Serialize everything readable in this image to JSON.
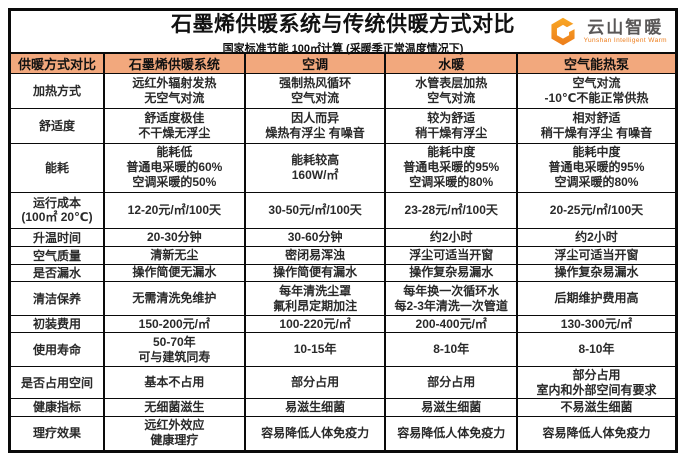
{
  "chart_data": {
    "type": "table",
    "title": "石墨烯供暖系统与传统供暖方式对比",
    "subtitle": "国家标准节能 100㎡计算 (采暖季正常温度情况下)",
    "columns": [
      "供暖方式对比",
      "石墨烯供暖系统",
      "空调",
      "水暖",
      "空气能热泵"
    ],
    "rows": [
      {
        "label": "加热方式",
        "cells": [
          "远红外辐射发热\n无空气对流",
          "强制热风循环\n空气对流",
          "水管表层加热\n空气对流",
          "空气对流\n-10℃不能正常供热"
        ]
      },
      {
        "label": "舒适度",
        "cells": [
          "舒适度极佳\n不干燥无浮尘",
          "因人而异\n燥热有浮尘 有噪音",
          "较为舒适\n稍干燥有浮尘",
          "相对舒适\n稍干燥有浮尘 有噪音"
        ]
      },
      {
        "label": "能耗",
        "cells": [
          "能耗低\n普通电采暖的60%\n空调采暖的50%",
          "能耗较高\n160W/㎡",
          "能耗中度\n普通电采暖的95%\n空调采暖的80%",
          "能耗中度\n普通电采暖的95%\n空调采暖的80%"
        ]
      },
      {
        "label": "运行成本\n(100㎡ 20℃)",
        "cells": [
          "12-20元/㎡/100天",
          "30-50元/㎡/100天",
          "23-28元/㎡/100天",
          "20-25元/㎡/100天"
        ]
      },
      {
        "label": "升温时间",
        "cells": [
          "20-30分钟",
          "30-60分钟",
          "约2小时",
          "约2小时"
        ]
      },
      {
        "label": "空气质量",
        "cells": [
          "清新无尘",
          "密闭易浑浊",
          "浮尘可适当开窗",
          "浮尘可适当开窗"
        ]
      },
      {
        "label": "是否漏水",
        "cells": [
          "操作简便无漏水",
          "操作简便有漏水",
          "操作复杂易漏水",
          "操作复杂易漏水"
        ]
      },
      {
        "label": "清洁保养",
        "cells": [
          "无需清洗免维护",
          "每年清洗尘罩\n氟利昂定期加注",
          "每年换一次循环水\n每2-3年清洗一次管道",
          "后期维护费用高"
        ]
      },
      {
        "label": "初装费用",
        "cells": [
          "150-200元/㎡",
          "100-220元/㎡",
          "200-400元/㎡",
          "130-300元/㎡"
        ]
      },
      {
        "label": "使用寿命",
        "cells": [
          "50-70年\n可与建筑同寿",
          "10-15年",
          "8-10年",
          "8-10年"
        ]
      },
      {
        "label": "是否占用空间",
        "cells": [
          "基本不占用",
          "部分占用",
          "部分占用",
          "部分占用\n室内和外部空间有要求"
        ]
      },
      {
        "label": "健康指标",
        "cells": [
          "无细菌滋生",
          "易滋生细菌",
          "易滋生细菌",
          "不易滋生细菌"
        ]
      },
      {
        "label": "理疗效果",
        "cells": [
          "远红外效应\n健康理疗",
          "容易降低人体免疫力",
          "容易降低人体免疫力",
          "容易降低人体免疫力"
        ]
      }
    ]
  },
  "logo": {
    "name": "云山智暖",
    "tagline": "Yunshan Intelligent Warm",
    "icon": "hexagon-c-logo"
  },
  "colors": {
    "header_bg": "#F2A87D",
    "border": "#0A0A0A",
    "text": "#2A2A2A",
    "logo_orange": "#ED7D1B",
    "logo_orange_light": "#F9A825",
    "logo_gray": "#595757"
  }
}
